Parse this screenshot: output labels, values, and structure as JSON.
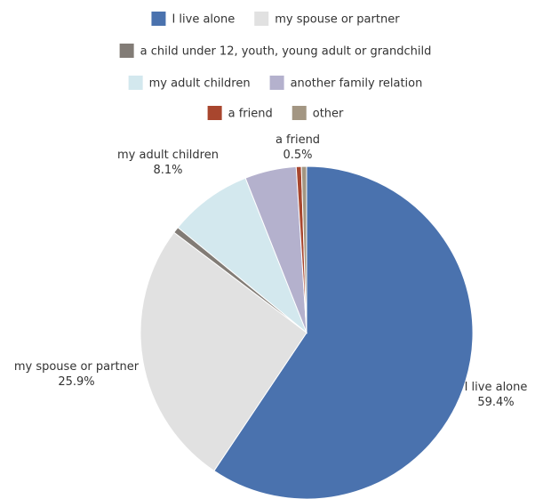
{
  "chart_data": {
    "type": "pie",
    "legend_position": "top",
    "series": [
      {
        "name": "I live alone",
        "value": 59.4,
        "label": "59.4%",
        "color": "#4a72ae"
      },
      {
        "name": "my spouse or partner",
        "value": 25.9,
        "label": "25.9%",
        "color": "#e1e1e1"
      },
      {
        "name": "a child under 12, youth, young adult or grandchild",
        "value": 0.6,
        "label": "",
        "color": "#827c76"
      },
      {
        "name": "my adult children",
        "value": 8.1,
        "label": "8.1%",
        "color": "#d3e8ee"
      },
      {
        "name": "another family relation",
        "value": 5.0,
        "label": "",
        "color": "#b4b1cd"
      },
      {
        "name": "a friend",
        "value": 0.5,
        "label": "0.5%",
        "color": "#a8462e"
      },
      {
        "name": "other",
        "value": 0.5,
        "label": "",
        "color": "#a39682"
      }
    ]
  }
}
